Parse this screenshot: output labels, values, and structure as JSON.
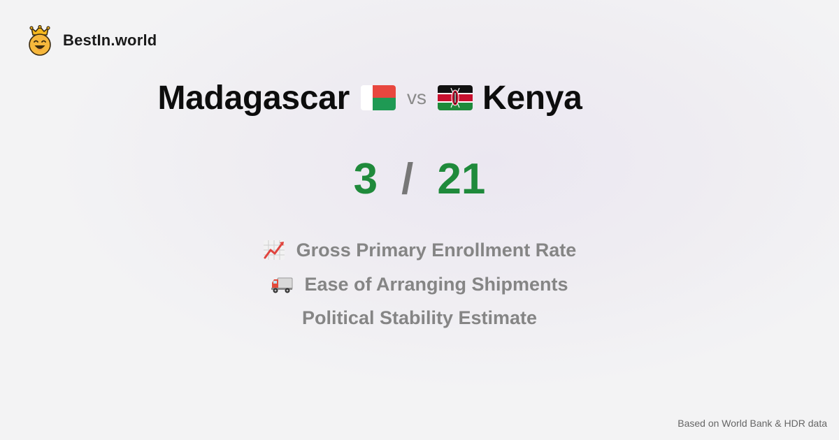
{
  "brand": {
    "name": "BestIn.world",
    "icon": "crown-smiley-icon"
  },
  "comparison": {
    "country_a": "Madagascar",
    "country_a_flag": "madagascar-flag-icon",
    "vs_label": "vs",
    "country_b": "Kenya",
    "country_b_flag": "kenya-flag-icon"
  },
  "score": {
    "a": "3",
    "separator": "/",
    "b": "21",
    "color": "#1f8a3b"
  },
  "metrics": [
    {
      "label": "Gross Primary Enrollment Rate",
      "icon": "chart-increasing-icon"
    },
    {
      "label": "Ease of Arranging Shipments",
      "icon": "delivery-truck-icon"
    },
    {
      "label": "Political Stability Estimate",
      "icon": ""
    }
  ],
  "footer": {
    "source": "Based on World Bank & HDR data"
  }
}
